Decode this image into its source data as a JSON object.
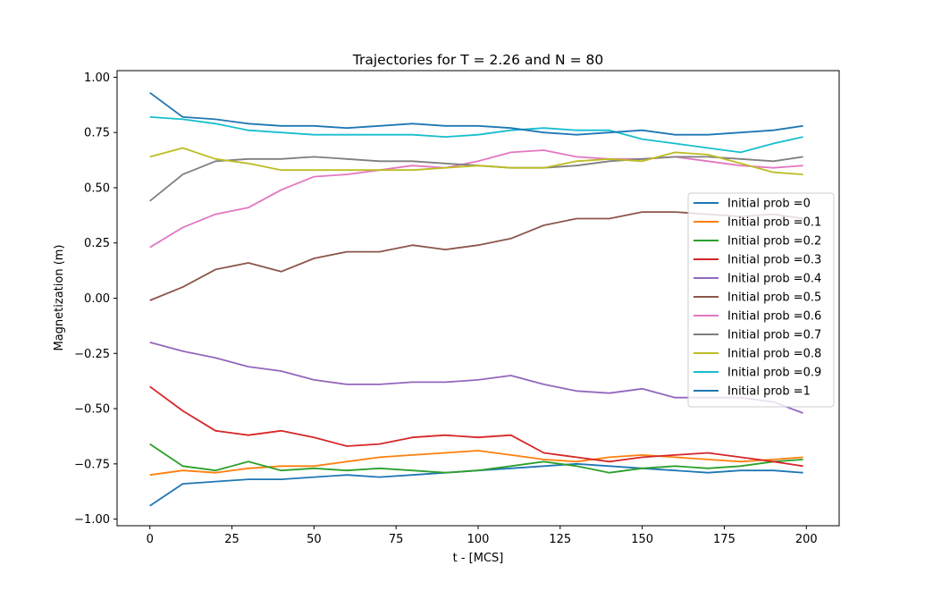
{
  "chart_data": {
    "type": "line",
    "title": "Trajectories for T = 2.26 and N = 80",
    "xlabel": "t - [MCS]",
    "ylabel": "Magnetization (m)",
    "xlim": [
      -10,
      210
    ],
    "ylim": [
      -1.03,
      1.03
    ],
    "xticks": [
      0,
      25,
      50,
      75,
      100,
      125,
      150,
      175,
      200
    ],
    "xtick_labels": [
      "0",
      "25",
      "50",
      "75",
      "100",
      "125",
      "150",
      "175",
      "200"
    ],
    "yticks": [
      -1.0,
      -0.75,
      -0.5,
      -0.25,
      0.0,
      0.25,
      0.5,
      0.75,
      1.0
    ],
    "ytick_labels": [
      "−1.00",
      "−0.75",
      "−0.50",
      "−0.25",
      "0.00",
      "0.25",
      "0.50",
      "0.75",
      "1.00"
    ],
    "grid": false,
    "legend_position": "center-right",
    "x": [
      0,
      10,
      20,
      30,
      40,
      50,
      60,
      70,
      80,
      90,
      100,
      110,
      120,
      130,
      140,
      150,
      160,
      170,
      180,
      190,
      199
    ],
    "series": [
      {
        "name": "Initial prob =0",
        "color": "#1f77b4",
        "values": [
          -0.94,
          -0.84,
          -0.83,
          -0.82,
          -0.82,
          -0.81,
          -0.8,
          -0.81,
          -0.8,
          -0.79,
          -0.78,
          -0.77,
          -0.76,
          -0.75,
          -0.76,
          -0.77,
          -0.78,
          -0.79,
          -0.78,
          -0.78,
          -0.79
        ]
      },
      {
        "name": "Initial prob =0.1",
        "color": "#ff7f0e",
        "values": [
          -0.8,
          -0.78,
          -0.79,
          -0.77,
          -0.76,
          -0.76,
          -0.74,
          -0.72,
          -0.71,
          -0.7,
          -0.69,
          -0.71,
          -0.73,
          -0.74,
          -0.72,
          -0.71,
          -0.72,
          -0.73,
          -0.74,
          -0.73,
          -0.72
        ]
      },
      {
        "name": "Initial prob =0.2",
        "color": "#2ca02c",
        "values": [
          -0.66,
          -0.76,
          -0.78,
          -0.74,
          -0.78,
          -0.77,
          -0.78,
          -0.77,
          -0.78,
          -0.79,
          -0.78,
          -0.76,
          -0.74,
          -0.76,
          -0.79,
          -0.77,
          -0.76,
          -0.77,
          -0.76,
          -0.74,
          -0.73
        ]
      },
      {
        "name": "Initial prob =0.3",
        "color": "#d62728",
        "values": [
          -0.4,
          -0.51,
          -0.6,
          -0.62,
          -0.6,
          -0.63,
          -0.67,
          -0.66,
          -0.63,
          -0.62,
          -0.63,
          -0.62,
          -0.7,
          -0.72,
          -0.74,
          -0.72,
          -0.71,
          -0.7,
          -0.72,
          -0.74,
          -0.76
        ]
      },
      {
        "name": "Initial prob =0.4",
        "color": "#9467bd",
        "values": [
          -0.2,
          -0.24,
          -0.27,
          -0.31,
          -0.33,
          -0.37,
          -0.39,
          -0.39,
          -0.38,
          -0.38,
          -0.37,
          -0.35,
          -0.39,
          -0.42,
          -0.43,
          -0.41,
          -0.45,
          -0.45,
          -0.45,
          -0.47,
          -0.52
        ]
      },
      {
        "name": "Initial prob =0.5",
        "color": "#8c564b",
        "values": [
          -0.01,
          0.05,
          0.13,
          0.16,
          0.12,
          0.18,
          0.21,
          0.21,
          0.24,
          0.22,
          0.24,
          0.27,
          0.33,
          0.36,
          0.36,
          0.39,
          0.39,
          0.38,
          0.37,
          0.38,
          0.36
        ]
      },
      {
        "name": "Initial prob =0.6",
        "color": "#e377c2",
        "values": [
          0.23,
          0.32,
          0.38,
          0.41,
          0.49,
          0.55,
          0.56,
          0.58,
          0.6,
          0.59,
          0.62,
          0.66,
          0.67,
          0.64,
          0.63,
          0.63,
          0.64,
          0.62,
          0.6,
          0.59,
          0.6
        ]
      },
      {
        "name": "Initial prob =0.7",
        "color": "#7f7f7f",
        "values": [
          0.44,
          0.56,
          0.62,
          0.63,
          0.63,
          0.64,
          0.63,
          0.62,
          0.62,
          0.61,
          0.6,
          0.59,
          0.59,
          0.6,
          0.62,
          0.63,
          0.64,
          0.64,
          0.63,
          0.62,
          0.64
        ]
      },
      {
        "name": "Initial prob =0.8",
        "color": "#bcbd22",
        "values": [
          0.64,
          0.68,
          0.63,
          0.61,
          0.58,
          0.58,
          0.58,
          0.58,
          0.58,
          0.59,
          0.6,
          0.59,
          0.59,
          0.62,
          0.63,
          0.62,
          0.66,
          0.65,
          0.61,
          0.57,
          0.56
        ]
      },
      {
        "name": "Initial prob =0.9",
        "color": "#17becf",
        "values": [
          0.82,
          0.81,
          0.79,
          0.76,
          0.75,
          0.74,
          0.74,
          0.74,
          0.74,
          0.73,
          0.74,
          0.76,
          0.77,
          0.76,
          0.76,
          0.72,
          0.7,
          0.68,
          0.66,
          0.7,
          0.73
        ]
      },
      {
        "name": "Initial prob =1",
        "color": "#1f77b4",
        "values": [
          0.93,
          0.82,
          0.81,
          0.79,
          0.78,
          0.78,
          0.77,
          0.78,
          0.79,
          0.78,
          0.78,
          0.77,
          0.75,
          0.74,
          0.75,
          0.76,
          0.74,
          0.74,
          0.75,
          0.76,
          0.78
        ]
      }
    ]
  }
}
